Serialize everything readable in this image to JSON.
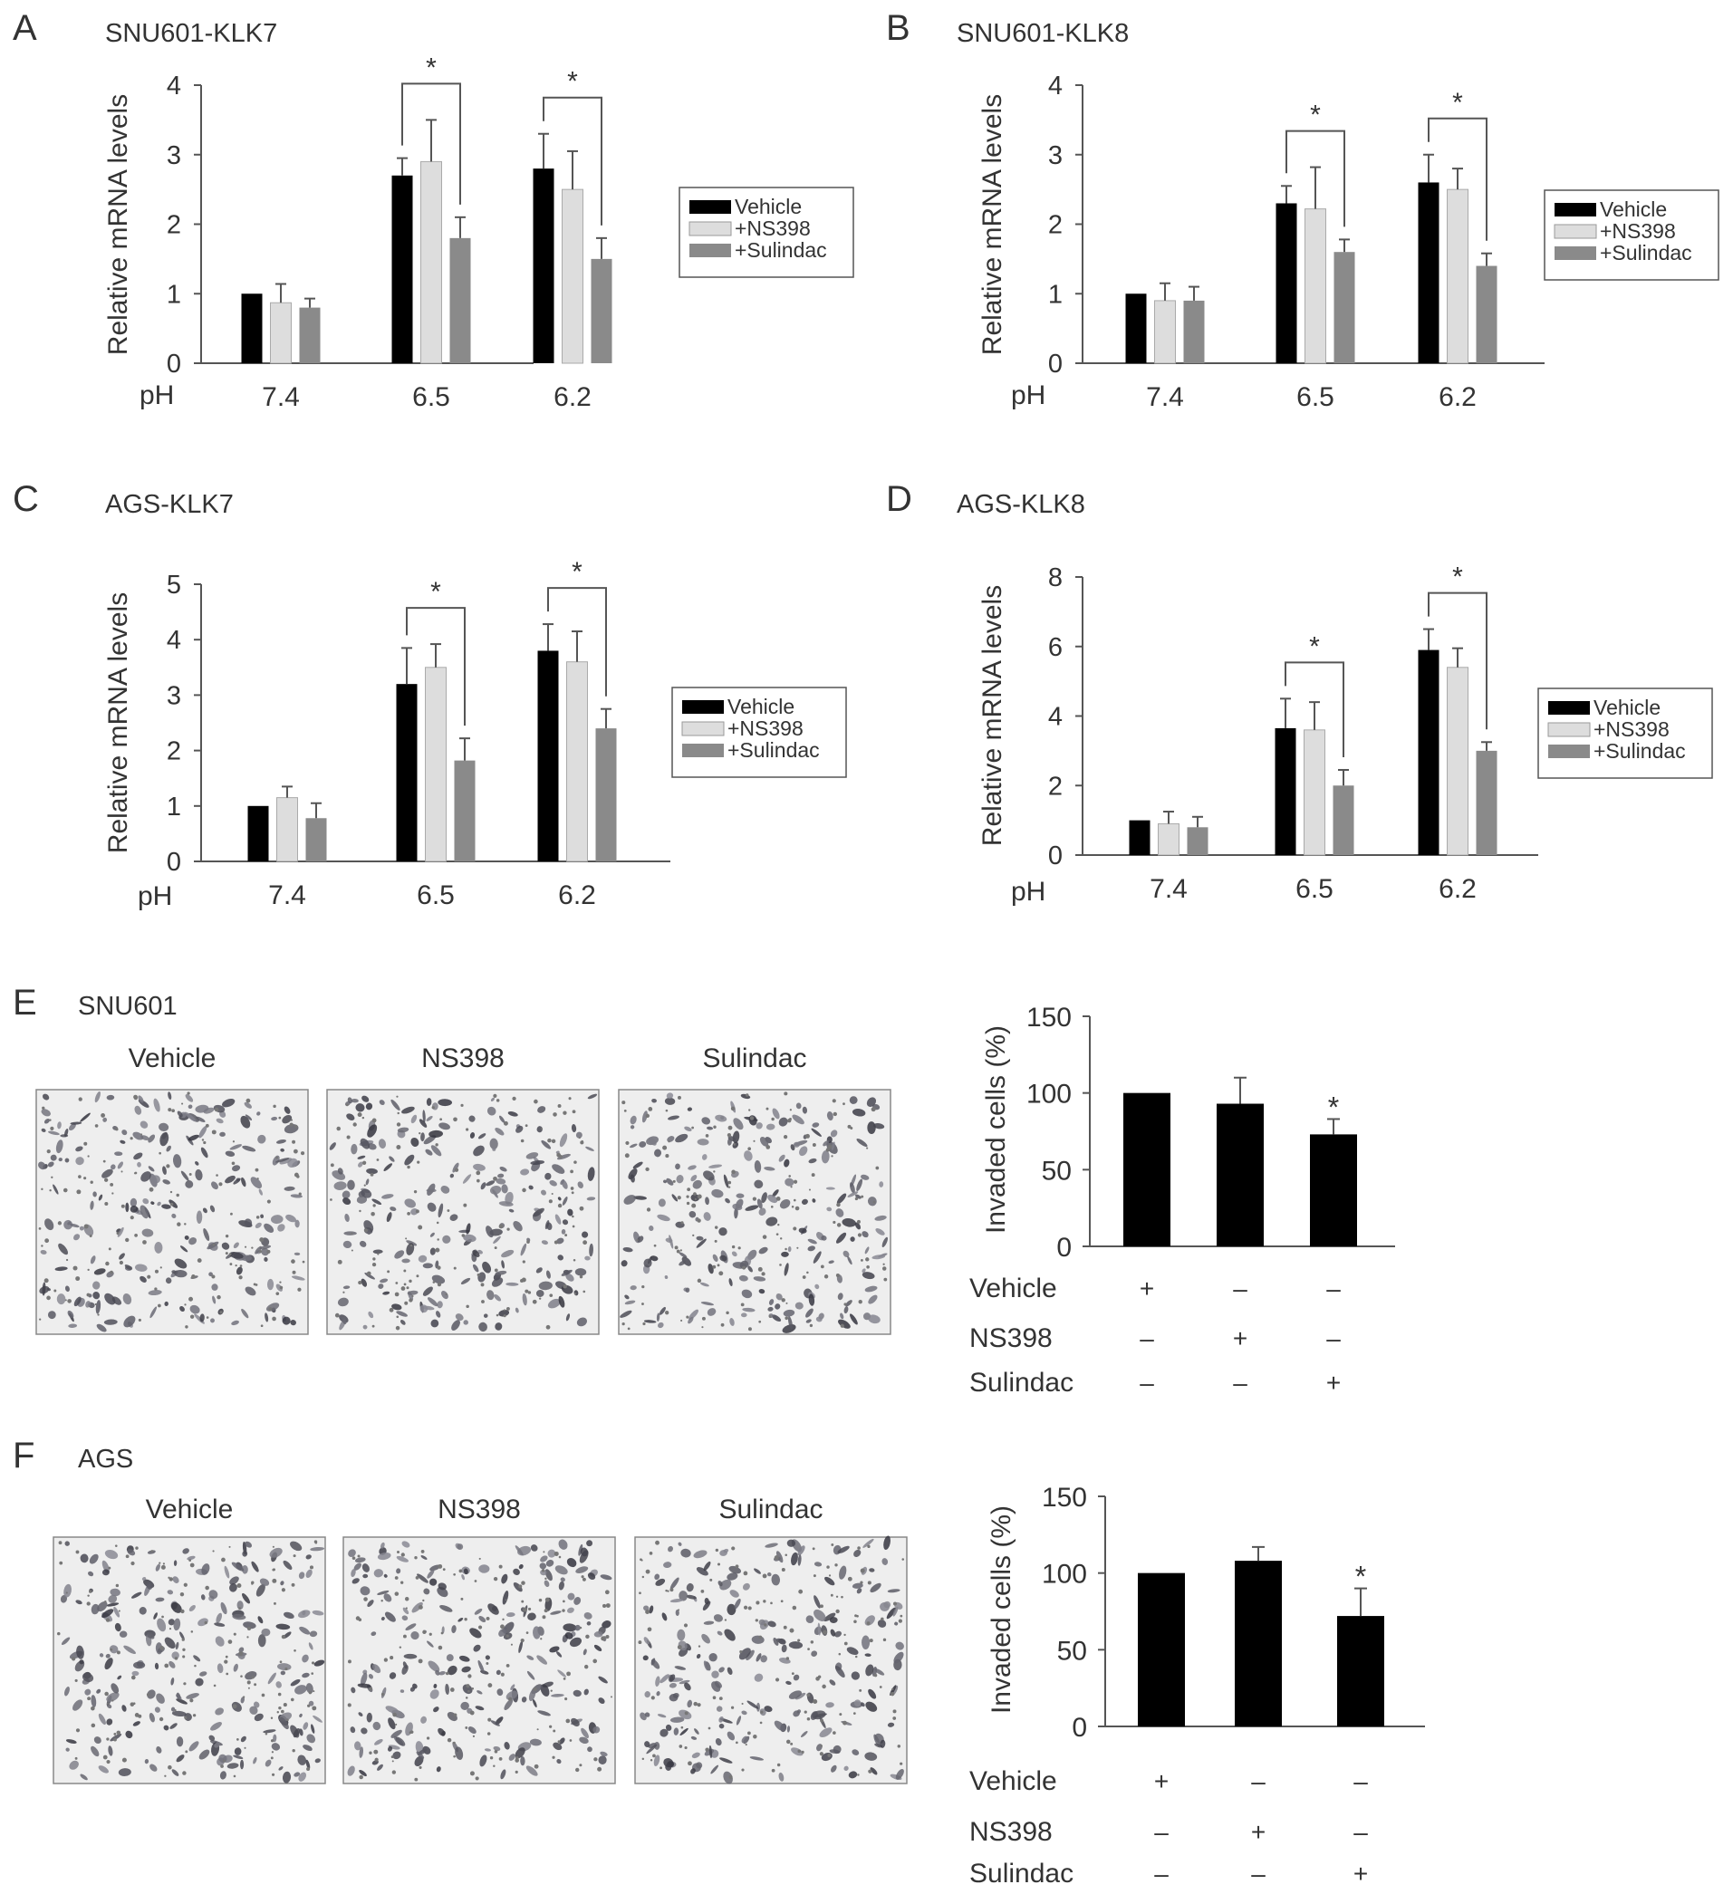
{
  "colors": {
    "vehicle": "#000000",
    "ns398": "#dddddd",
    "sulindac": "#8a8a8a",
    "axis": "#555555",
    "text": "#333333"
  },
  "legend_labels": [
    "Vehicle",
    "+NS398",
    "+Sulindac"
  ],
  "chart_data": [
    {
      "panel": "A",
      "type": "bar",
      "title": "SNU601-KLK7",
      "xlabel": "pH",
      "ylabel": "Relative mRNA levels",
      "categories": [
        "7.4",
        "6.5",
        "6.2"
      ],
      "ylim": [
        0,
        4
      ],
      "yticks": [
        0,
        1,
        2,
        3,
        4
      ],
      "series": [
        {
          "name": "Vehicle",
          "values": [
            1.0,
            2.7,
            2.8
          ],
          "errors": [
            0,
            0.25,
            0.5
          ]
        },
        {
          "name": "+NS398",
          "values": [
            0.87,
            2.9,
            2.5
          ],
          "errors": [
            0.27,
            0.6,
            0.55
          ]
        },
        {
          "name": "+Sulindac",
          "values": [
            0.8,
            1.8,
            1.5
          ],
          "errors": [
            0.13,
            0.3,
            0.3
          ]
        }
      ],
      "significance": [
        {
          "category": "6.5",
          "label": "*"
        },
        {
          "category": "6.2",
          "label": "*"
        }
      ]
    },
    {
      "panel": "B",
      "type": "bar",
      "title": "SNU601-KLK8",
      "xlabel": "pH",
      "ylabel": "Relative mRNA levels",
      "categories": [
        "7.4",
        "6.5",
        "6.2"
      ],
      "ylim": [
        0,
        4
      ],
      "yticks": [
        0,
        1,
        2,
        3,
        4
      ],
      "series": [
        {
          "name": "Vehicle",
          "values": [
            1.0,
            2.3,
            2.6
          ],
          "errors": [
            0,
            0.25,
            0.4
          ]
        },
        {
          "name": "+NS398",
          "values": [
            0.9,
            2.22,
            2.5
          ],
          "errors": [
            0.25,
            0.6,
            0.3
          ]
        },
        {
          "name": "+Sulindac",
          "values": [
            0.9,
            1.6,
            1.4
          ],
          "errors": [
            0.2,
            0.18,
            0.18
          ]
        }
      ],
      "significance": [
        {
          "category": "6.5",
          "label": "*"
        },
        {
          "category": "6.2",
          "label": "*"
        }
      ]
    },
    {
      "panel": "C",
      "type": "bar",
      "title": "AGS-KLK7",
      "xlabel": "pH",
      "ylabel": "Relative mRNA levels",
      "categories": [
        "7.4",
        "6.5",
        "6.2"
      ],
      "ylim": [
        0,
        5
      ],
      "yticks": [
        0,
        1,
        2,
        3,
        4,
        5
      ],
      "series": [
        {
          "name": "Vehicle",
          "values": [
            1.0,
            3.2,
            3.8
          ],
          "errors": [
            0,
            0.65,
            0.48
          ]
        },
        {
          "name": "+NS398",
          "values": [
            1.15,
            3.5,
            3.6
          ],
          "errors": [
            0.2,
            0.42,
            0.55
          ]
        },
        {
          "name": "+Sulindac",
          "values": [
            0.78,
            1.82,
            2.4
          ],
          "errors": [
            0.27,
            0.4,
            0.35
          ]
        }
      ],
      "significance": [
        {
          "category": "6.5",
          "label": "*"
        },
        {
          "category": "6.2",
          "label": "*"
        }
      ]
    },
    {
      "panel": "D",
      "type": "bar",
      "title": "AGS-KLK8",
      "xlabel": "pH",
      "ylabel": "Relative mRNA levels",
      "categories": [
        "7.4",
        "6.5",
        "6.2"
      ],
      "ylim": [
        0,
        8
      ],
      "yticks": [
        0,
        2,
        4,
        6,
        8
      ],
      "series": [
        {
          "name": "Vehicle",
          "values": [
            1.0,
            3.65,
            5.9
          ],
          "errors": [
            0,
            0.85,
            0.6
          ]
        },
        {
          "name": "+NS398",
          "values": [
            0.9,
            3.6,
            5.4
          ],
          "errors": [
            0.35,
            0.8,
            0.55
          ]
        },
        {
          "name": "+Sulindac",
          "values": [
            0.8,
            2.0,
            3.0
          ],
          "errors": [
            0.3,
            0.45,
            0.25
          ]
        }
      ],
      "significance": [
        {
          "category": "6.5",
          "label": "*"
        },
        {
          "category": "6.2",
          "label": "*"
        }
      ]
    },
    {
      "panel": "E",
      "type": "bar",
      "ylabel": "Invaded cells (%)",
      "categories": [
        "Vehicle",
        "NS398",
        "Sulindac"
      ],
      "values": [
        100,
        93,
        73
      ],
      "errors": [
        0,
        17,
        10
      ],
      "ylim": [
        0,
        150
      ],
      "yticks": [
        0,
        50,
        100,
        150
      ],
      "treatment_rows": [
        {
          "label": "Vehicle",
          "signs": [
            "+",
            "–",
            "–"
          ]
        },
        {
          "label": "NS398",
          "signs": [
            "–",
            "+",
            "–"
          ]
        },
        {
          "label": "Sulindac",
          "signs": [
            "–",
            "–",
            "+"
          ]
        }
      ],
      "significance": [
        {
          "category": "Sulindac",
          "label": "*"
        }
      ]
    },
    {
      "panel": "F",
      "type": "bar",
      "ylabel": "Invaded cells (%)",
      "categories": [
        "Vehicle",
        "NS398",
        "Sulindac"
      ],
      "values": [
        100,
        108,
        72
      ],
      "errors": [
        0,
        9,
        18
      ],
      "ylim": [
        0,
        150
      ],
      "yticks": [
        0,
        50,
        100,
        150
      ],
      "treatment_rows": [
        {
          "label": "Vehicle",
          "signs": [
            "+",
            "–",
            "–"
          ]
        },
        {
          "label": "NS398",
          "signs": [
            "–",
            "+",
            "–"
          ]
        },
        {
          "label": "Sulindac",
          "signs": [
            "–",
            "–",
            "+"
          ]
        }
      ],
      "significance": [
        {
          "category": "Sulindac",
          "label": "*"
        }
      ]
    }
  ],
  "micrographs": {
    "E": {
      "title": "SNU601",
      "labels": [
        "Vehicle",
        "NS398",
        "Sulindac"
      ]
    },
    "F": {
      "title": "AGS",
      "labels": [
        "Vehicle",
        "NS398",
        "Sulindac"
      ]
    }
  }
}
